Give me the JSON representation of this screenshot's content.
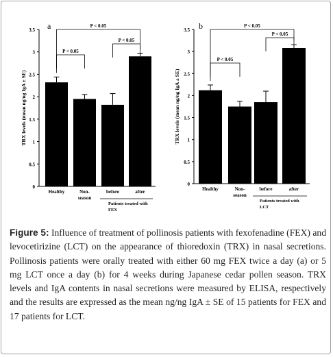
{
  "caption": {
    "label": "Figure",
    "number": "5:",
    "text": "Influence of treatment of pollinosis patients with fexofenadine (FEX) and levocetirizine (LCT) on the appearance of thioredoxin (TRX) in nasal secretions. Pollinosis patients were orally treated with either 60 mg FEX twice a day (a) or 5 mg LCT once a day (b) for 4 weeks during Japanese cedar pollen season. TRX levels and IgA contents in nasal secretions were measured by ELISA, respectively and the results are expressed as the mean ng/ng IgA ± SE of 15 patients for FEX and 17 patients for LCT."
  },
  "chart_data": [
    {
      "panel": "a",
      "type": "bar",
      "ylabel": "TRX levels (mean ng/ng IgA ± SE)",
      "ylim": [
        0,
        3.5
      ],
      "yticks": [
        "0",
        "0.5",
        "1",
        "1.5",
        "2",
        "2.5",
        "3",
        "3.5"
      ],
      "categories": [
        "Healthy",
        "Non-season",
        "before",
        "after"
      ],
      "category_lines": [
        [
          "Healthy"
        ],
        [
          "Non-",
          "season"
        ],
        [
          "before"
        ],
        [
          "after"
        ]
      ],
      "values": [
        2.32,
        1.95,
        1.82,
        2.9
      ],
      "errors": [
        0.12,
        0.1,
        0.25,
        0.06
      ],
      "group_label": [
        "Patients treated with",
        "FEX"
      ],
      "annotations": [
        {
          "text": "P < 0.05",
          "from": 0,
          "to": 3
        },
        {
          "text": "P < 0.05",
          "from": 0,
          "to": 1
        },
        {
          "text": "P < 0.05",
          "from": 2,
          "to": 3
        }
      ],
      "bar_color": "#000000"
    },
    {
      "panel": "b",
      "type": "bar",
      "ylabel": "TRX levels (mean ng/ng IgA ± SE)",
      "ylim": [
        0,
        3.5
      ],
      "yticks": [
        "0",
        "0.5",
        "1",
        "1.5",
        "2",
        "2.5",
        "3",
        "3.5"
      ],
      "categories": [
        "Healthy",
        "Non-season",
        "before",
        "after"
      ],
      "category_lines": [
        [
          "Healthy"
        ],
        [
          "Non-",
          "season"
        ],
        [
          "before"
        ],
        [
          "after"
        ]
      ],
      "values": [
        2.12,
        1.75,
        1.85,
        3.08
      ],
      "errors": [
        0.12,
        0.12,
        0.25,
        0.07
      ],
      "group_label": [
        "Patients treated with",
        "LCT"
      ],
      "annotations": [
        {
          "text": "P < 0.05",
          "from": 0,
          "to": 3
        },
        {
          "text": "P < 0.05",
          "from": 0,
          "to": 1
        },
        {
          "text": "P < 0.05",
          "from": 2,
          "to": 3
        }
      ],
      "bar_color": "#000000"
    }
  ]
}
